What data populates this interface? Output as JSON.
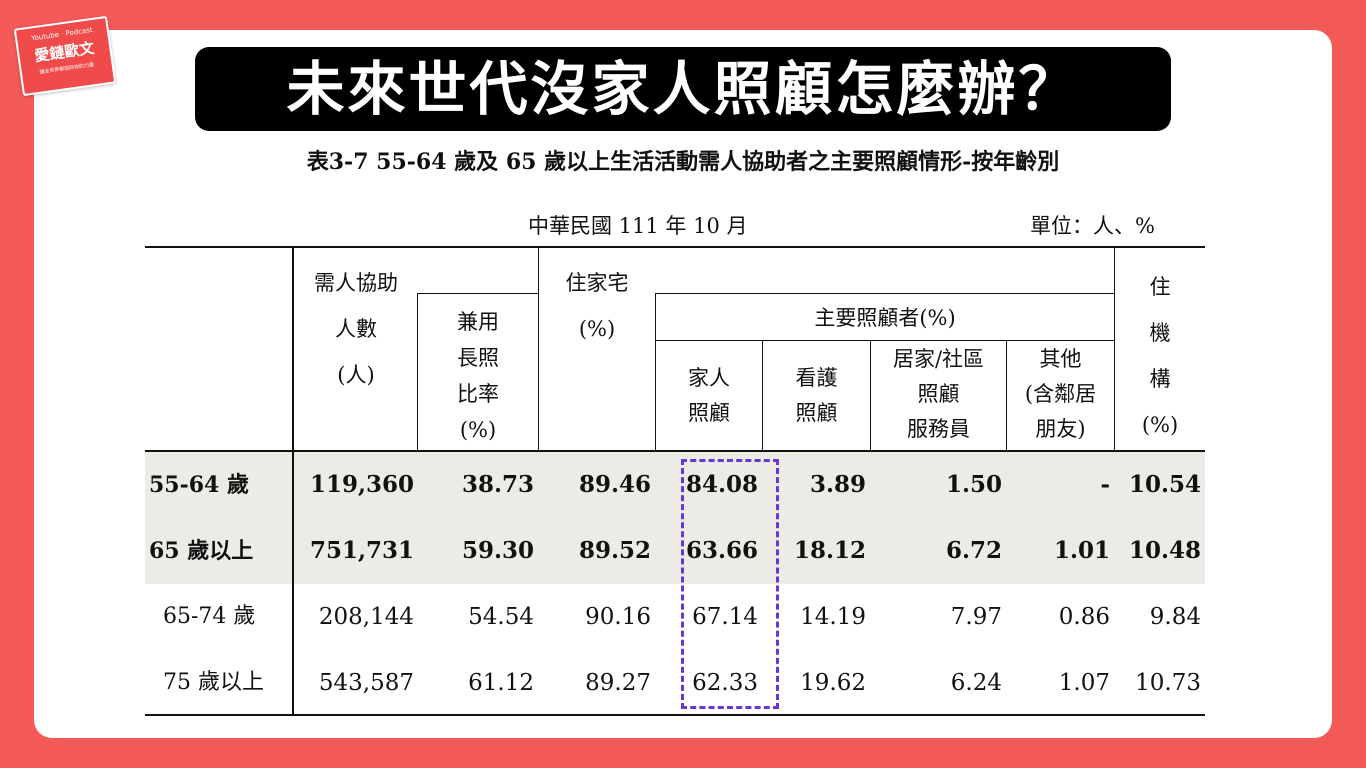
{
  "brand": {
    "line1": "Youtube · Podcast",
    "name": "愛鏈歐文",
    "tagline": "讓全世界都認同你的力量"
  },
  "headline": "未來世代沒家人照顧怎麼辦？",
  "table_title": "表3-7   55-64 歲及 65 歲以上生活活動需人協助者之主要照顧情形-按年齡別",
  "date": "中華民國 111 年 10 月",
  "unit": "單位：人、%",
  "headers": {
    "need_help_count": [
      "需人協助",
      "人數",
      "(人)"
    ],
    "ltc_rate": [
      "兼用",
      "長照",
      "比率",
      "(%)"
    ],
    "home": [
      "住家宅",
      "(%)"
    ],
    "main_caregiver": "主要照顧者(%)",
    "family": [
      "家人",
      "照顧"
    ],
    "nursing": [
      "看護",
      "照顧"
    ],
    "home_community": [
      "居家/社區",
      "照顧",
      "服務員"
    ],
    "other": [
      "其他",
      "(含鄰居",
      "朋友)"
    ],
    "institution": [
      "住",
      "機",
      "構",
      "(%)"
    ]
  },
  "rows": [
    {
      "label": "55-64 歲",
      "count": "119,360",
      "ltc": "38.73",
      "home": "89.46",
      "family": "84.08",
      "nursing": "3.89",
      "homecare": "1.50",
      "other": "-",
      "inst": "10.54"
    },
    {
      "label": "65 歲以上",
      "count": "751,731",
      "ltc": "59.30",
      "home": "89.52",
      "family": "63.66",
      "nursing": "18.12",
      "homecare": "6.72",
      "other": "1.01",
      "inst": "10.48"
    },
    {
      "label": "65-74 歲",
      "count": "208,144",
      "ltc": "54.54",
      "home": "90.16",
      "family": "67.14",
      "nursing": "14.19",
      "homecare": "7.97",
      "other": "0.86",
      "inst": "9.84"
    },
    {
      "label": "75 歲以上",
      "count": "543,587",
      "ltc": "61.12",
      "home": "89.27",
      "family": "62.33",
      "nursing": "19.62",
      "homecare": "6.24",
      "other": "1.07",
      "inst": "10.73"
    }
  ],
  "colors": {
    "background": "#f45a57",
    "highlight_rows": "#ebece6",
    "dashed_highlight": "#6a35d8"
  }
}
